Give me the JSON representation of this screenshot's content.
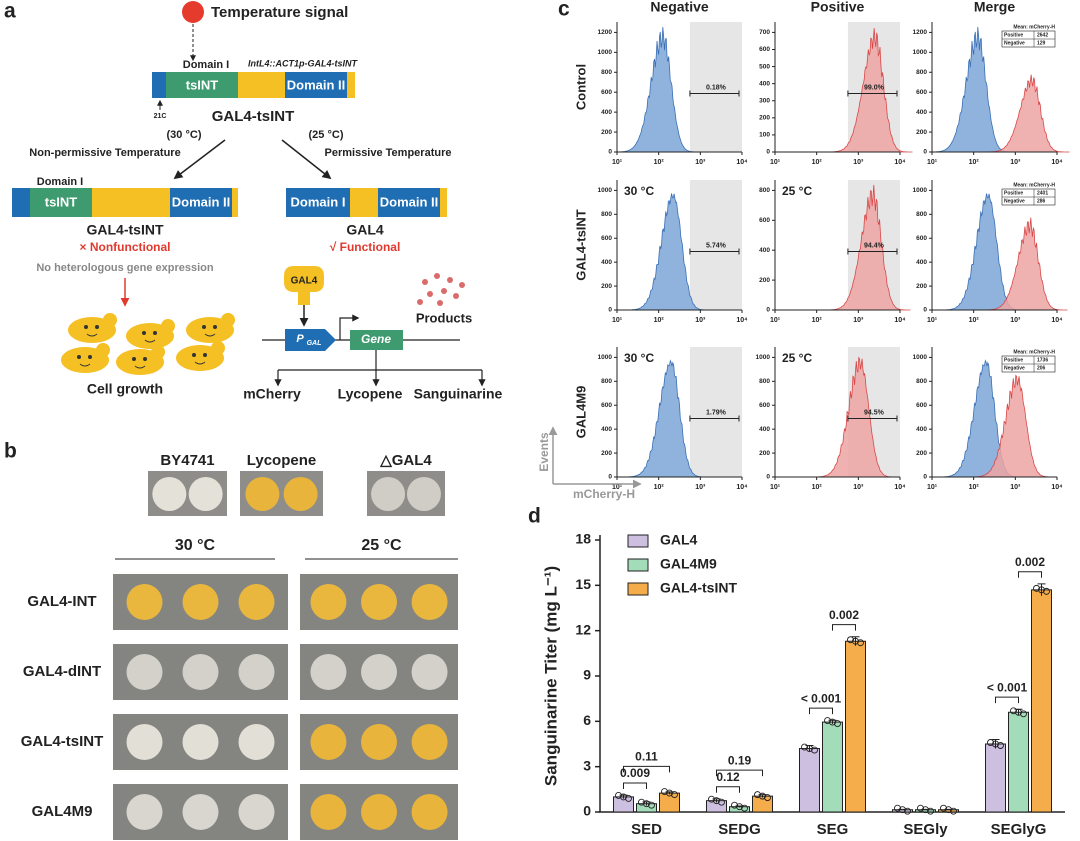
{
  "panel_a": {
    "label": "a",
    "signal": "Temperature signal",
    "domain1_top": "Domain I",
    "construct": "IntL4::ACT1p-GAL4-tsINT",
    "tsint_top": "tsINT",
    "domain2_top": "Domain II",
    "site": "21C",
    "name_top": "GAL4-tsINT",
    "temp_left": "(30 °C)",
    "temp_right": "(25 °C)",
    "cond_left": "Non-permissive Temperature",
    "cond_right": "Permissive Temperature",
    "left": {
      "domain1": "Domain I",
      "tsint": "tsINT",
      "domain2": "Domain II",
      "name": "GAL4-tsINT",
      "status": "× Nonfunctional",
      "note": "No heterologous gene expression",
      "outcome": "Cell growth"
    },
    "right": {
      "domain1": "Domain I",
      "domain2": "Domain II",
      "name": "GAL4",
      "status": "√ Functional",
      "protein": "GAL4",
      "products": "Products",
      "promoter": "P",
      "promoter_sub": "GAL",
      "gene": "Gene",
      "outputs": [
        "mCherry",
        "Lycopene",
        "Sanguinarine"
      ]
    }
  },
  "panel_b": {
    "label": "b",
    "strains": [
      "BY4741",
      "Lycopene",
      "△GAL4"
    ],
    "strain_colors": [
      "#e4e1d8",
      "#e8b43c",
      "#cfcdc6"
    ],
    "temps": [
      "30 °C",
      "25 °C"
    ],
    "rows": [
      "GAL4-INT",
      "GAL4-dINT",
      "GAL4-tsINT",
      "GAL4M9"
    ],
    "row_colors": [
      [
        "#e9b73e",
        "#e9b73e"
      ],
      [
        "#d3d1ca",
        "#d3d1ca"
      ],
      [
        "#e2dfd6",
        "#e8b43c"
      ],
      [
        "#d8d6cf",
        "#e8b43c"
      ]
    ]
  },
  "panel_c": {
    "label": "c",
    "columns": [
      "Negative",
      "Positive",
      "Merge"
    ],
    "xticks": [
      "10¹",
      "10²",
      "10³",
      "10⁴"
    ],
    "y_axis_label": "Events",
    "x_axis_label": "mCherry-H",
    "rows": [
      {
        "label": "Control",
        "plots": [
          {
            "yticks": [
              0,
              200,
              400,
              600,
              800,
              1000,
              1200
            ],
            "gate": "0.18%"
          },
          {
            "yticks": [
              0,
              100,
              200,
              300,
              400,
              500,
              600,
              700
            ],
            "gate": "99.0%"
          },
          {
            "yticks": [
              0,
              200,
              400,
              600,
              800,
              1000,
              1200
            ],
            "mean_box": {
              "title": "Mean: mCherry-H",
              "rows": [
                [
                  "Positive",
                  2642
                ],
                [
                  "Negative",
                  129
                ]
              ]
            }
          }
        ]
      },
      {
        "label": "GAL4-tsINT",
        "plots": [
          {
            "temp": "30 °C",
            "yticks": [
              0,
              200,
              400,
              600,
              800,
              1000
            ],
            "gate": "5.74%"
          },
          {
            "temp": "25 °C",
            "yticks": [
              0,
              200,
              400,
              600,
              800
            ],
            "gate": "94.4%"
          },
          {
            "yticks": [
              0,
              200,
              400,
              600,
              800,
              1000
            ],
            "mean_box": {
              "title": "Mean: mCherry-H",
              "rows": [
                [
                  "Positive",
                  2401
                ],
                [
                  "Negative",
                  286
                ]
              ]
            }
          }
        ]
      },
      {
        "label": "GAL4M9",
        "plots": [
          {
            "temp": "30 °C",
            "yticks": [
              0,
              200,
              400,
              600,
              800,
              1000
            ],
            "gate": "1.79%"
          },
          {
            "temp": "25 °C",
            "yticks": [
              0,
              200,
              400,
              600,
              800,
              1000
            ],
            "gate": "94.5%"
          },
          {
            "yticks": [
              0,
              200,
              400,
              600,
              800,
              1000
            ],
            "mean_box": {
              "title": "Mean: mCherry-H",
              "rows": [
                [
                  "Positive",
                  1736
                ],
                [
                  "Negative",
                  206
                ]
              ]
            }
          }
        ]
      }
    ]
  },
  "chart_data": {
    "type": "bar",
    "label": "d",
    "ylabel": "Sanguinarine Titer (mg L⁻¹)",
    "categories": [
      "SED",
      "SEDG",
      "SEG",
      "SEGly",
      "SEGlyG"
    ],
    "series": [
      {
        "name": "GAL4",
        "color": "#cdbfe0",
        "values": [
          1.0,
          0.75,
          4.2,
          0.15,
          4.5
        ],
        "errors": [
          0.12,
          0.12,
          0.2,
          0.02,
          0.3
        ]
      },
      {
        "name": "GAL4M9",
        "color": "#a3dcb8",
        "values": [
          0.55,
          0.35,
          5.95,
          0.15,
          6.6
        ],
        "errors": [
          0.12,
          0.05,
          0.12,
          0.02,
          0.2
        ]
      },
      {
        "name": "GAL4-tsINT",
        "color": "#f5ad4c",
        "values": [
          1.25,
          1.05,
          11.3,
          0.15,
          14.7
        ],
        "errors": [
          0.08,
          0.1,
          0.3,
          0.02,
          0.4
        ]
      }
    ],
    "ylim": [
      0,
      18
    ],
    "yticks": [
      0,
      3,
      6,
      9,
      12,
      15,
      18
    ],
    "comparisons": [
      {
        "category": 0,
        "bars": [
          0,
          1
        ],
        "label": "0.009"
      },
      {
        "category": 0,
        "bars": [
          0,
          2
        ],
        "label": "0.11"
      },
      {
        "category": 1,
        "bars": [
          0,
          1
        ],
        "label": "0.12"
      },
      {
        "category": 1,
        "bars": [
          0,
          2
        ],
        "label": "0.19"
      },
      {
        "category": 2,
        "bars": [
          0,
          1
        ],
        "label": "< 0.001"
      },
      {
        "category": 2,
        "bars": [
          1,
          2
        ],
        "label": "0.002"
      },
      {
        "category": 4,
        "bars": [
          0,
          1
        ],
        "label": "< 0.001"
      },
      {
        "category": 4,
        "bars": [
          1,
          2
        ],
        "label": "0.002"
      }
    ]
  }
}
